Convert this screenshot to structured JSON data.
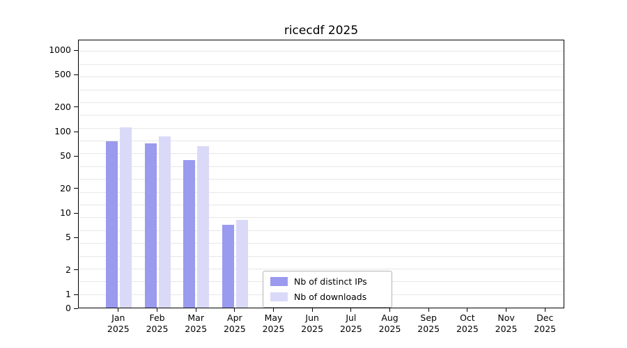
{
  "title": "ricecdf 2025",
  "chart_data": {
    "type": "bar",
    "title": "ricecdf 2025",
    "categories": [
      "Jan",
      "Feb",
      "Mar",
      "Apr",
      "May",
      "Jun",
      "Jul",
      "Aug",
      "Sep",
      "Oct",
      "Nov",
      "Dec"
    ],
    "year": "2025",
    "series": [
      {
        "name": "Nb of distinct IPs",
        "color": "#9a9aee",
        "values": [
          75,
          70,
          44,
          7,
          0,
          0,
          0,
          0,
          0,
          0,
          0,
          0
        ]
      },
      {
        "name": "Nb of downloads",
        "color": "#dadaf8",
        "values": [
          110,
          85,
          65,
          8,
          0,
          0,
          0,
          0,
          0,
          0,
          0,
          0
        ]
      }
    ],
    "y_ticks": [
      0,
      1,
      2,
      5,
      10,
      20,
      50,
      100,
      200,
      500,
      1000
    ],
    "y_scale": "log",
    "ylim": [
      0,
      1350
    ],
    "grid": "on",
    "legend_position": "bottom-center"
  }
}
